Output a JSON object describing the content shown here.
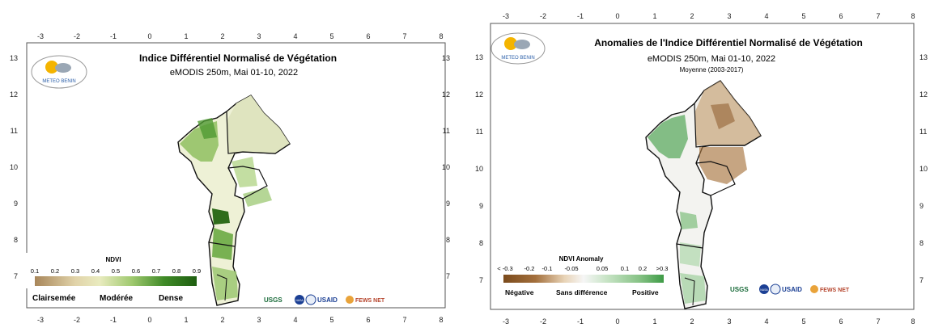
{
  "left": {
    "title": "Indice Différentiel Normalisé de Végétation",
    "subtitle": "eMODIS 250m, Mai 01-10, 2022",
    "logo_text": "METEO BENIN",
    "x_ticks": [
      "-3",
      "-2",
      "-1",
      "0",
      "1",
      "2",
      "3",
      "4",
      "5",
      "6",
      "7",
      "8"
    ],
    "y_ticks": [
      "13",
      "12",
      "11",
      "10",
      "9",
      "8",
      "7"
    ],
    "legend": {
      "title": "NDVI",
      "ticks": [
        "0.1",
        "0.2",
        "0.3",
        "0.4",
        "0.5",
        "0.6",
        "0.7",
        "0.8",
        "0.9"
      ],
      "categories": [
        "Clairsemée",
        "Modérée",
        "Dense"
      ],
      "colors": [
        "#a8865a",
        "#c9b184",
        "#e1d3a9",
        "#e9ebbf",
        "#c9df9c",
        "#9fc96f",
        "#6fae47",
        "#3f8a27",
        "#1e5e10"
      ]
    },
    "partners": [
      "USGS",
      "NASA",
      "USAID",
      "FEWS NET"
    ]
  },
  "right": {
    "title": "Anomalies de l'Indice Différentiel Normalisé de Végétation",
    "subtitle": "eMODIS 250m, Mai 01-10, 2022",
    "subtitle2": "Moyenne (2003-2017)",
    "logo_text": "METEO BENIN",
    "x_ticks": [
      "-3",
      "-2",
      "-1",
      "0",
      "1",
      "2",
      "3",
      "4",
      "5",
      "6",
      "7",
      "8"
    ],
    "y_ticks": [
      "13",
      "12",
      "11",
      "10",
      "9",
      "8",
      "7"
    ],
    "legend": {
      "title": "NDVI Anomaly",
      "ticks": [
        "< -0.3",
        "-0.2",
        "-0.1",
        "-0.05",
        "0.05",
        "0.1",
        "0.2",
        ">0.3"
      ],
      "categories": [
        "Négative",
        "Sans différence",
        "Positive"
      ],
      "colors": [
        "#7a4a1c",
        "#a36f3c",
        "#c99a68",
        "#e8d3b6",
        "#f6f6f6",
        "#c6e3c4",
        "#86c285",
        "#3e9b46"
      ]
    },
    "partners": [
      "USGS",
      "NASA",
      "USAID",
      "FEWS NET"
    ]
  }
}
